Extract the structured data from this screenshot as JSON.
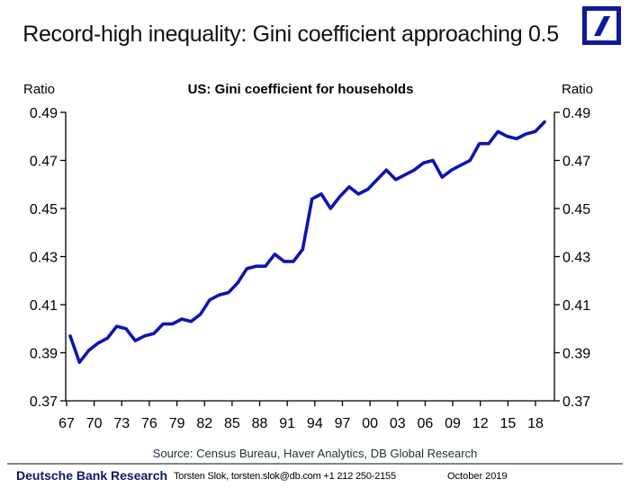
{
  "header": {
    "title": "Record-high inequality: Gini coefficient approaching 0.5",
    "logo": "deutsche-bank-logo"
  },
  "colors": {
    "line": "#0d14b4",
    "logo": "#0a1a9a",
    "brand_text": "#0b1a66",
    "source_text": "#1f2d45",
    "axis": "#000000",
    "divider": "#7f868f"
  },
  "chart_data": {
    "type": "line",
    "title": "US: Gini coefficient for households",
    "ylabel_left": "Ratio",
    "ylabel_right": "Ratio",
    "xlabel": "",
    "ylim": [
      0.37,
      0.49
    ],
    "yticks": [
      "0.49",
      "0.47",
      "0.45",
      "0.43",
      "0.41",
      "0.39",
      "0.37"
    ],
    "ytick_values": [
      0.49,
      0.47,
      0.45,
      0.43,
      0.41,
      0.39,
      0.37
    ],
    "xlim": [
      1967,
      2019
    ],
    "xticks": [
      "67",
      "70",
      "73",
      "76",
      "79",
      "82",
      "85",
      "88",
      "91",
      "94",
      "97",
      "00",
      "03",
      "06",
      "09",
      "12",
      "15",
      "18"
    ],
    "xtick_values": [
      1967,
      1970,
      1973,
      1976,
      1979,
      1982,
      1985,
      1988,
      1991,
      1994,
      1997,
      2000,
      2003,
      2006,
      2009,
      2012,
      2015,
      2018
    ],
    "grid": false,
    "legend": "none",
    "dual_axis": true,
    "series": [
      {
        "name": "US: Gini coefficient for households",
        "x": [
          1967,
          1968,
          1969,
          1970,
          1971,
          1972,
          1973,
          1974,
          1975,
          1976,
          1977,
          1978,
          1979,
          1980,
          1981,
          1982,
          1983,
          1984,
          1985,
          1986,
          1987,
          1988,
          1989,
          1990,
          1991,
          1992,
          1993,
          1994,
          1995,
          1996,
          1997,
          1998,
          1999,
          2000,
          2001,
          2002,
          2003,
          2004,
          2005,
          2006,
          2007,
          2008,
          2009,
          2010,
          2011,
          2012,
          2013,
          2014,
          2015,
          2016,
          2017,
          2018
        ],
        "values": [
          0.397,
          0.386,
          0.391,
          0.394,
          0.396,
          0.401,
          0.4,
          0.395,
          0.397,
          0.398,
          0.402,
          0.402,
          0.404,
          0.403,
          0.406,
          0.412,
          0.414,
          0.415,
          0.419,
          0.425,
          0.426,
          0.426,
          0.431,
          0.428,
          0.428,
          0.433,
          0.454,
          0.456,
          0.45,
          0.455,
          0.459,
          0.456,
          0.458,
          0.462,
          0.466,
          0.462,
          0.464,
          0.466,
          0.469,
          0.47,
          0.463,
          0.466,
          0.468,
          0.47,
          0.477,
          0.477,
          0.482,
          0.48,
          0.479,
          0.481,
          0.482,
          0.486
        ]
      }
    ]
  },
  "footer": {
    "source": "Source: Census Bureau, Haver Analytics, DB Global Research",
    "brand": "Deutsche Bank Research",
    "contact": "Torsten Slok, torsten.slok@db.com  +1 212 250-2155",
    "date": "October 2019"
  }
}
